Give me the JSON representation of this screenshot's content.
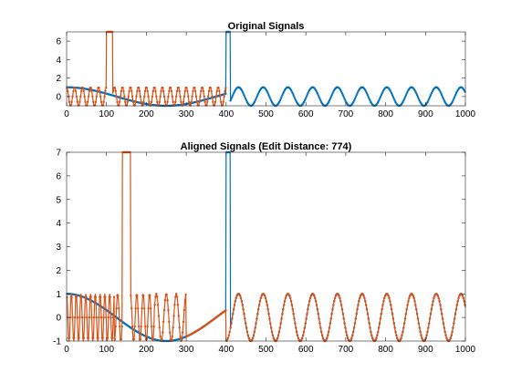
{
  "figure": {
    "background": "#ffffff"
  },
  "chart_data": [
    {
      "type": "line",
      "title": "Original Signals",
      "xlabel": "",
      "ylabel": "",
      "xlim": [
        0,
        1000
      ],
      "ylim": [
        -1,
        7
      ],
      "xticks": [
        0,
        100,
        200,
        300,
        400,
        500,
        600,
        700,
        800,
        900,
        1000
      ],
      "yticks": [
        0,
        2,
        4,
        6
      ],
      "grid": false,
      "series": [
        {
          "color": "#0072BD",
          "marker": ".",
          "x_range": [
            1,
            1000
          ],
          "description": "cosine-like, amplitude 1, slow period 500 for x<400, period ~62 after 400; spike to 7 at x≈400-410",
          "spikes": [
            {
              "x": [
                400,
                410
              ],
              "y": 7
            }
          ]
        },
        {
          "color": "#D95319",
          "marker": ".",
          "x_range": [
            1,
            400
          ],
          "description": "fast oscillation amplitude 1 period ~20; spike to 7 at x≈100-115",
          "spikes": [
            {
              "x": [
                100,
                115
              ],
              "y": 7
            }
          ]
        }
      ]
    },
    {
      "type": "line",
      "title": "Aligned Signals (Edit Distance: 774)",
      "xlabel": "",
      "ylabel": "",
      "xlim": [
        0,
        1000
      ],
      "ylim": [
        -1,
        7
      ],
      "xticks": [
        0,
        100,
        200,
        300,
        400,
        500,
        600,
        700,
        800,
        900,
        1000
      ],
      "yticks": [
        -1,
        0,
        1,
        2,
        3,
        4,
        5,
        6,
        7
      ],
      "grid": false,
      "series": [
        {
          "color": "#0072BD",
          "marker": ".",
          "x_range": [
            1,
            1000
          ],
          "description": "aligned version of first signal: slow cosine until ~400 then period ~62; spike to 7 at x≈400-410",
          "spikes": [
            {
              "x": [
                400,
                410
              ],
              "y": 7
            }
          ]
        },
        {
          "color": "#D95319",
          "marker": ".",
          "x_range": [
            1,
            1000
          ],
          "description": "warped second signal, fast oscillations early, follows blue later; spike to 7 at x≈140-160",
          "spikes": [
            {
              "x": [
                140,
                160
              ],
              "y": 7
            }
          ]
        }
      ]
    }
  ]
}
